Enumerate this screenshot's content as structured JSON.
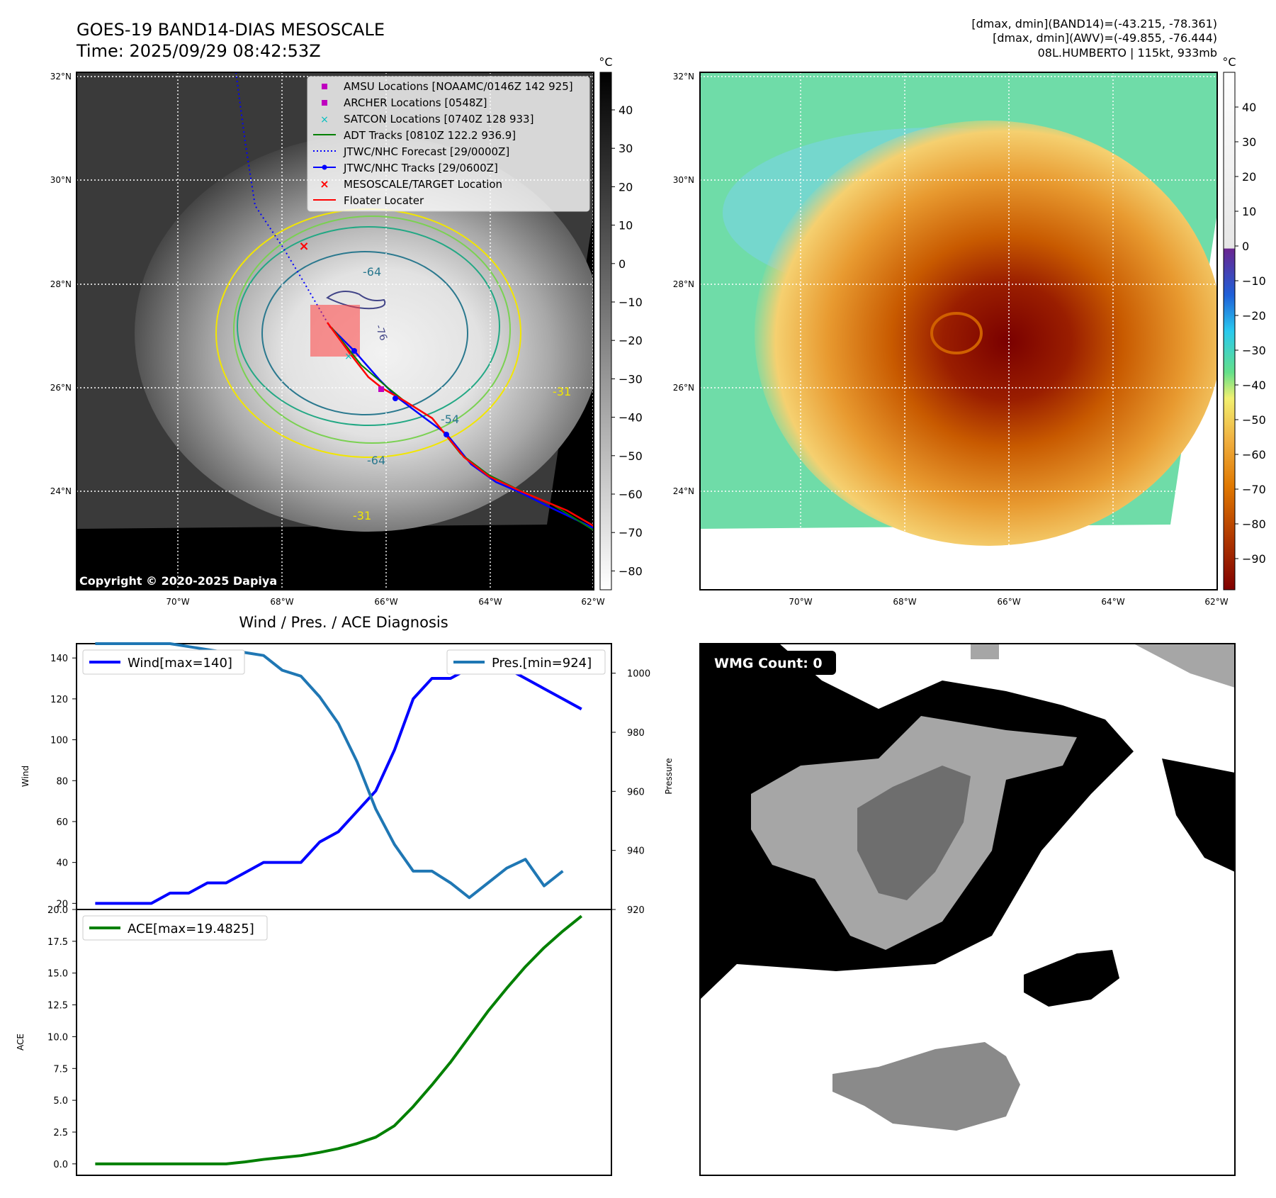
{
  "header": {
    "title_line1": "GOES-19 BAND14-DIAS MESOSCALE",
    "title_line2": "Time: 2025/09/29 08:42:53Z",
    "info_line1": "[dmax, dmin](BAND14)=(-43.215, -78.361)",
    "info_line2": "[dmax, dmin](AWV)=(-49.855, -76.444)",
    "info_line3": "08L.HUMBERTO | 115kt, 933mb"
  },
  "map": {
    "lat_ticks": [
      "32°N",
      "30°N",
      "28°N",
      "26°N",
      "24°N"
    ],
    "lon_ticks": [
      "70°W",
      "68°W",
      "66°W",
      "64°W",
      "62°W"
    ],
    "copyright": "Copyright © 2020-2025 Dapiya",
    "contour_labels": [
      "-64",
      "-64",
      "-54",
      "-31",
      "-31",
      "-76"
    ],
    "legend": [
      {
        "label": "AMSU Locations [NOAAMC/0146Z 142 925]",
        "color": "#bf00bf"
      },
      {
        "label": "ARCHER Locations [0548Z]",
        "color": "#bf00bf"
      },
      {
        "label": "SATCON Locations [0740Z 128 933]",
        "color": "#00bfbf"
      },
      {
        "label": "ADT Tracks [0810Z 122.2 936.9]",
        "color": "#008000"
      },
      {
        "label": "JTWC/NHC Forecast [29/0000Z]",
        "color": "#0000ff"
      },
      {
        "label": "JTWC/NHC Tracks [29/0600Z]",
        "color": "#0000ff"
      },
      {
        "label": "MESOSCALE/TARGET Location",
        "color": "#ff0000"
      },
      {
        "label": "Floater Locater",
        "color": "#ff0000"
      }
    ],
    "colorbar_gray": {
      "unit": "°C",
      "ticks": [
        "40",
        "30",
        "20",
        "10",
        "0",
        "−10",
        "−20",
        "−30",
        "−40",
        "−50",
        "−60",
        "−70",
        "−80"
      ]
    },
    "colorbar_color": {
      "unit": "°C",
      "ticks": [
        "40",
        "30",
        "20",
        "10",
        "0",
        "−10",
        "−20",
        "−30",
        "−40",
        "−50",
        "−60",
        "−70",
        "−80",
        "−90"
      ]
    }
  },
  "wmg": {
    "count_label": "WMG Count: 0"
  },
  "chart_data": [
    {
      "type": "line",
      "title": "Wind / Pres. / ACE Diagnosis",
      "xlabel": "",
      "ylabel": "Wind",
      "ylabel2": "Pressure",
      "ylim": [
        17,
        147
      ],
      "ylim2": [
        920,
        1010
      ],
      "yticks": [
        20,
        40,
        60,
        80,
        100,
        120,
        140
      ],
      "yticks2": [
        920,
        940,
        960,
        980,
        1000
      ],
      "x": [
        0,
        1,
        2,
        3,
        4,
        5,
        6,
        7,
        8,
        9,
        10,
        11,
        12,
        13,
        14,
        15,
        16,
        17,
        18,
        19,
        20,
        21,
        22,
        23,
        24,
        25,
        26,
        27
      ],
      "series": [
        {
          "name": "Wind[max=140]",
          "axis": "left",
          "color": "#0000ff",
          "values": [
            20,
            20,
            20,
            20,
            25,
            25,
            30,
            30,
            35,
            40,
            40,
            40,
            50,
            55,
            65,
            75,
            95,
            120,
            130,
            130,
            135,
            140,
            135,
            130,
            125,
            120,
            115,
            null
          ]
        },
        {
          "name": "Pres.[min=924]",
          "axis": "right",
          "color": "#1f77b4",
          "values": [
            1010,
            1010,
            1010,
            1010,
            1010,
            1009,
            1008,
            1007,
            1007,
            1006,
            1001,
            999,
            992,
            983,
            970,
            954,
            942,
            933,
            933,
            929,
            924,
            929,
            934,
            937,
            928,
            933,
            null,
            null
          ]
        }
      ]
    },
    {
      "type": "line",
      "title": "",
      "xlabel": "",
      "ylabel": "ACE",
      "ylim": [
        -0.9,
        20
      ],
      "yticks": [
        0.0,
        2.5,
        5.0,
        7.5,
        10.0,
        12.5,
        15.0,
        17.5,
        20.0
      ],
      "ytick_labels": [
        "0.0",
        "2.5",
        "5.0",
        "7.5",
        "10.0",
        "12.5",
        "15.0",
        "17.5",
        "20.0"
      ],
      "x": [
        0,
        1,
        2,
        3,
        4,
        5,
        6,
        7,
        8,
        9,
        10,
        11,
        12,
        13,
        14,
        15,
        16,
        17,
        18,
        19,
        20,
        21,
        22,
        23,
        24,
        25,
        26,
        27
      ],
      "series": [
        {
          "name": "ACE[max=19.4825]",
          "color": "#008000",
          "values": [
            0,
            0,
            0,
            0,
            0,
            0,
            0,
            0,
            0.15,
            0.35,
            0.5,
            0.65,
            0.9,
            1.2,
            1.6,
            2.1,
            3.0,
            4.5,
            6.2,
            8.0,
            10.0,
            12.0,
            13.8,
            15.5,
            17.0,
            18.3,
            19.48,
            null
          ]
        }
      ]
    }
  ]
}
